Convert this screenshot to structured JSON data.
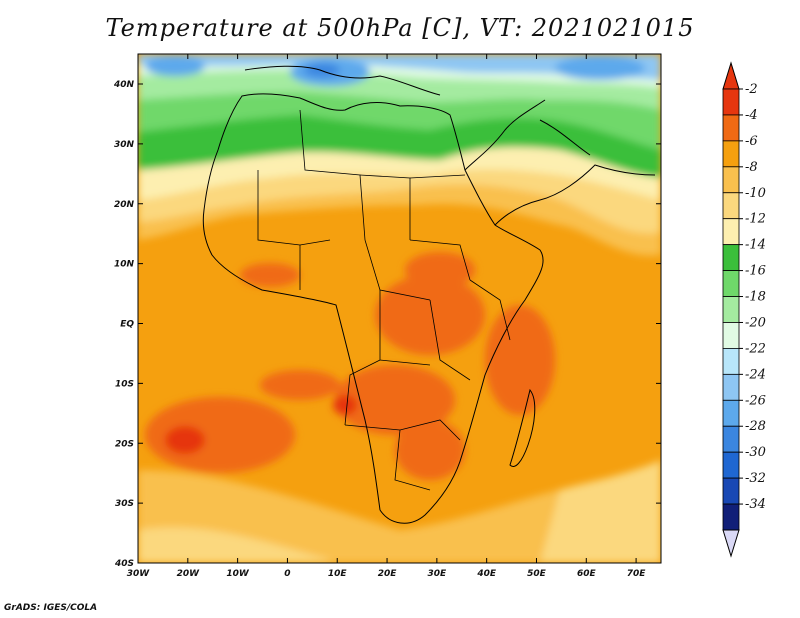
{
  "title": "Temperature at 500hPa [C], VT: 2021021015",
  "credit": "GrADS: IGES/COLA",
  "map": {
    "lon_range": [
      -30,
      75
    ],
    "lat_range": [
      -40,
      45
    ],
    "lat_ticks": [
      "40N",
      "30N",
      "20N",
      "10N",
      "EQ",
      "10S",
      "20S",
      "30S",
      "40S"
    ],
    "lon_ticks": [
      "30W",
      "20W",
      "10W",
      "0",
      "10E",
      "20E",
      "30E",
      "40E",
      "50E",
      "60E",
      "70E"
    ],
    "field": "Temperature at 500hPa",
    "units": "C"
  },
  "colorbar": {
    "labels": [
      "-2",
      "-4",
      "-6",
      "-8",
      "-10",
      "-12",
      "-14",
      "-16",
      "-18",
      "-20",
      "-22",
      "-24",
      "-26",
      "-28",
      "-30",
      "-32",
      "-34"
    ],
    "colors": [
      "#e6360f",
      "#f06a14",
      "#f5a00f",
      "#f9c04e",
      "#fbd87e",
      "#fdefb0",
      "#3bbf3b",
      "#6fd86a",
      "#a4eba0",
      "#e1fbe4",
      "#b8e6fa",
      "#8ec6f3",
      "#5da9ec",
      "#3b86e0",
      "#1f67d2",
      "#1948b4",
      "#111f78"
    ],
    "over_color": "#e6360f",
    "under_color": "#dad9f6"
  },
  "colors": {
    "land_outline": "#000000",
    "frame": "#000000"
  }
}
